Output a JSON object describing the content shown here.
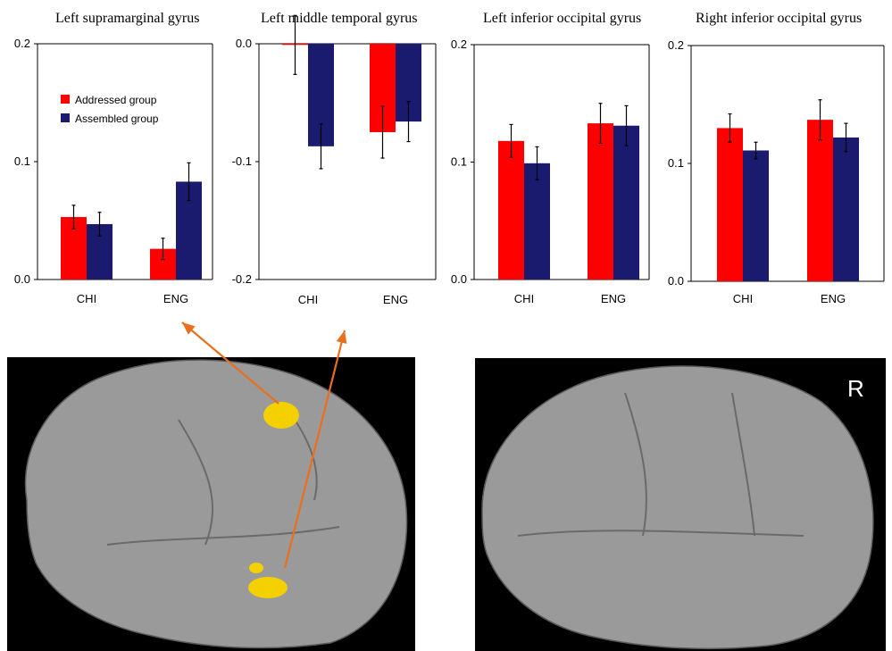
{
  "chart_data": [
    {
      "type": "bar",
      "title": "Left supramarginal gyrus",
      "categories": [
        "CHI",
        "ENG"
      ],
      "ylim": [
        0.0,
        0.2
      ],
      "yticks": [
        "0.0",
        "0.1",
        "0.2"
      ],
      "series": [
        {
          "name": "Addressed group",
          "values": [
            0.053,
            0.026
          ],
          "errors": [
            0.01,
            0.009
          ]
        },
        {
          "name": "Assembled group",
          "values": [
            0.047,
            0.083
          ],
          "errors": [
            0.01,
            0.016
          ]
        }
      ],
      "legend": "top-left"
    },
    {
      "type": "bar",
      "title": "Left middle temporal gyrus",
      "categories": [
        "CHI",
        "ENG"
      ],
      "ylim": [
        -0.2,
        0.0
      ],
      "yticks": [
        "-0.2",
        "-0.1",
        "0.0"
      ],
      "series": [
        {
          "name": "Addressed group",
          "values": [
            -0.001,
            -0.075
          ],
          "errors": [
            0.025,
            0.022
          ]
        },
        {
          "name": "Assembled group",
          "values": [
            -0.087,
            -0.066
          ],
          "errors": [
            0.019,
            0.017
          ]
        }
      ]
    },
    {
      "type": "bar",
      "title": "Left inferior occipital gyrus",
      "categories": [
        "CHI",
        "ENG"
      ],
      "ylim": [
        0.0,
        0.2
      ],
      "yticks": [
        "0.0",
        "0.1",
        "0.2"
      ],
      "series": [
        {
          "name": "Addressed group",
          "values": [
            0.118,
            0.133
          ],
          "errors": [
            0.014,
            0.017
          ]
        },
        {
          "name": "Assembled group",
          "values": [
            0.099,
            0.131
          ],
          "errors": [
            0.014,
            0.017
          ]
        }
      ]
    },
    {
      "type": "bar",
      "title": "Right inferior occipital gyrus",
      "categories": [
        "CHI",
        "ENG"
      ],
      "ylim": [
        0.0,
        0.2
      ],
      "yticks": [
        "0.0",
        "0.1",
        "0.2"
      ],
      "series": [
        {
          "name": "Addressed group",
          "values": [
            0.13,
            0.137
          ],
          "errors": [
            0.012,
            0.017
          ]
        },
        {
          "name": "Assembled group",
          "values": [
            0.111,
            0.122
          ],
          "errors": [
            0.007,
            0.012
          ]
        }
      ]
    }
  ],
  "colors": {
    "addressed": "#ff0000",
    "assembled": "#1a1a6e",
    "arrow": "#e8701c",
    "activation": "#f5d000"
  },
  "brain_right_label": "R"
}
